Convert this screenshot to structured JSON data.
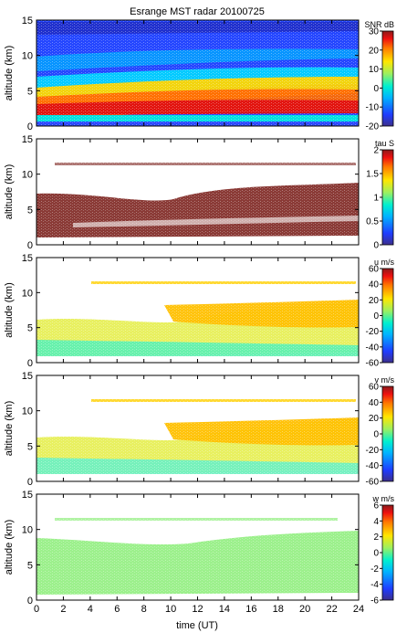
{
  "figure": {
    "title": "Esrange MST radar 20100725",
    "xlabel": "time (UT)"
  },
  "chart_data": [
    {
      "type": "heatmap",
      "ylabel": "altitude (km)",
      "colorbar_label": "SNR dB",
      "xlim": [
        0,
        24
      ],
      "ylim": [
        0,
        15
      ],
      "xticks": [
        "0",
        "2",
        "4",
        "6",
        "8",
        "10",
        "12",
        "14",
        "16",
        "18",
        "20",
        "22",
        "24"
      ],
      "yticks": [
        "0",
        "5",
        "10",
        "15"
      ],
      "colorbar_range": [
        -20,
        30
      ],
      "colorbar_ticks": [
        "-20",
        "-10",
        "0",
        "10",
        "20",
        "30"
      ]
    },
    {
      "type": "heatmap",
      "ylabel": "altitude (km)",
      "colorbar_label": "tau S",
      "xlim": [
        0,
        24
      ],
      "ylim": [
        0,
        15
      ],
      "xticks": [
        "0",
        "2",
        "4",
        "6",
        "8",
        "10",
        "12",
        "14",
        "16",
        "18",
        "20",
        "22",
        "24"
      ],
      "yticks": [
        "0",
        "5",
        "10",
        "15"
      ],
      "colorbar_range": [
        0,
        2
      ],
      "colorbar_ticks": [
        "0",
        "0.5",
        "1",
        "1.5",
        "2"
      ]
    },
    {
      "type": "heatmap",
      "ylabel": "altitude (km)",
      "colorbar_label": "u m/s",
      "xlim": [
        0,
        24
      ],
      "ylim": [
        0,
        15
      ],
      "xticks": [
        "0",
        "2",
        "4",
        "6",
        "8",
        "10",
        "12",
        "14",
        "16",
        "18",
        "20",
        "22",
        "24"
      ],
      "yticks": [
        "0",
        "5",
        "10",
        "15"
      ],
      "colorbar_range": [
        -60,
        60
      ],
      "colorbar_ticks": [
        "-60",
        "-40",
        "-20",
        "0",
        "20",
        "40",
        "60"
      ]
    },
    {
      "type": "heatmap",
      "ylabel": "altitude (km)",
      "colorbar_label": "v m/s",
      "xlim": [
        0,
        24
      ],
      "ylim": [
        0,
        15
      ],
      "xticks": [
        "0",
        "2",
        "4",
        "6",
        "8",
        "10",
        "12",
        "14",
        "16",
        "18",
        "20",
        "22",
        "24"
      ],
      "yticks": [
        "0",
        "5",
        "10",
        "15"
      ],
      "colorbar_range": [
        -60,
        60
      ],
      "colorbar_ticks": [
        "-60",
        "-40",
        "-20",
        "0",
        "20",
        "40",
        "60"
      ]
    },
    {
      "type": "heatmap",
      "ylabel": "altitude (km)",
      "colorbar_label": "w m/s",
      "xlim": [
        0,
        24
      ],
      "ylim": [
        0,
        15
      ],
      "xticks": [
        "0",
        "2",
        "4",
        "6",
        "8",
        "10",
        "12",
        "14",
        "16",
        "18",
        "20",
        "22",
        "24"
      ],
      "yticks": [
        "0",
        "5",
        "10",
        "15"
      ],
      "colorbar_range": [
        -6,
        6
      ],
      "colorbar_ticks": [
        "-6",
        "-4",
        "-2",
        "0",
        "2",
        "4",
        "6"
      ]
    }
  ]
}
